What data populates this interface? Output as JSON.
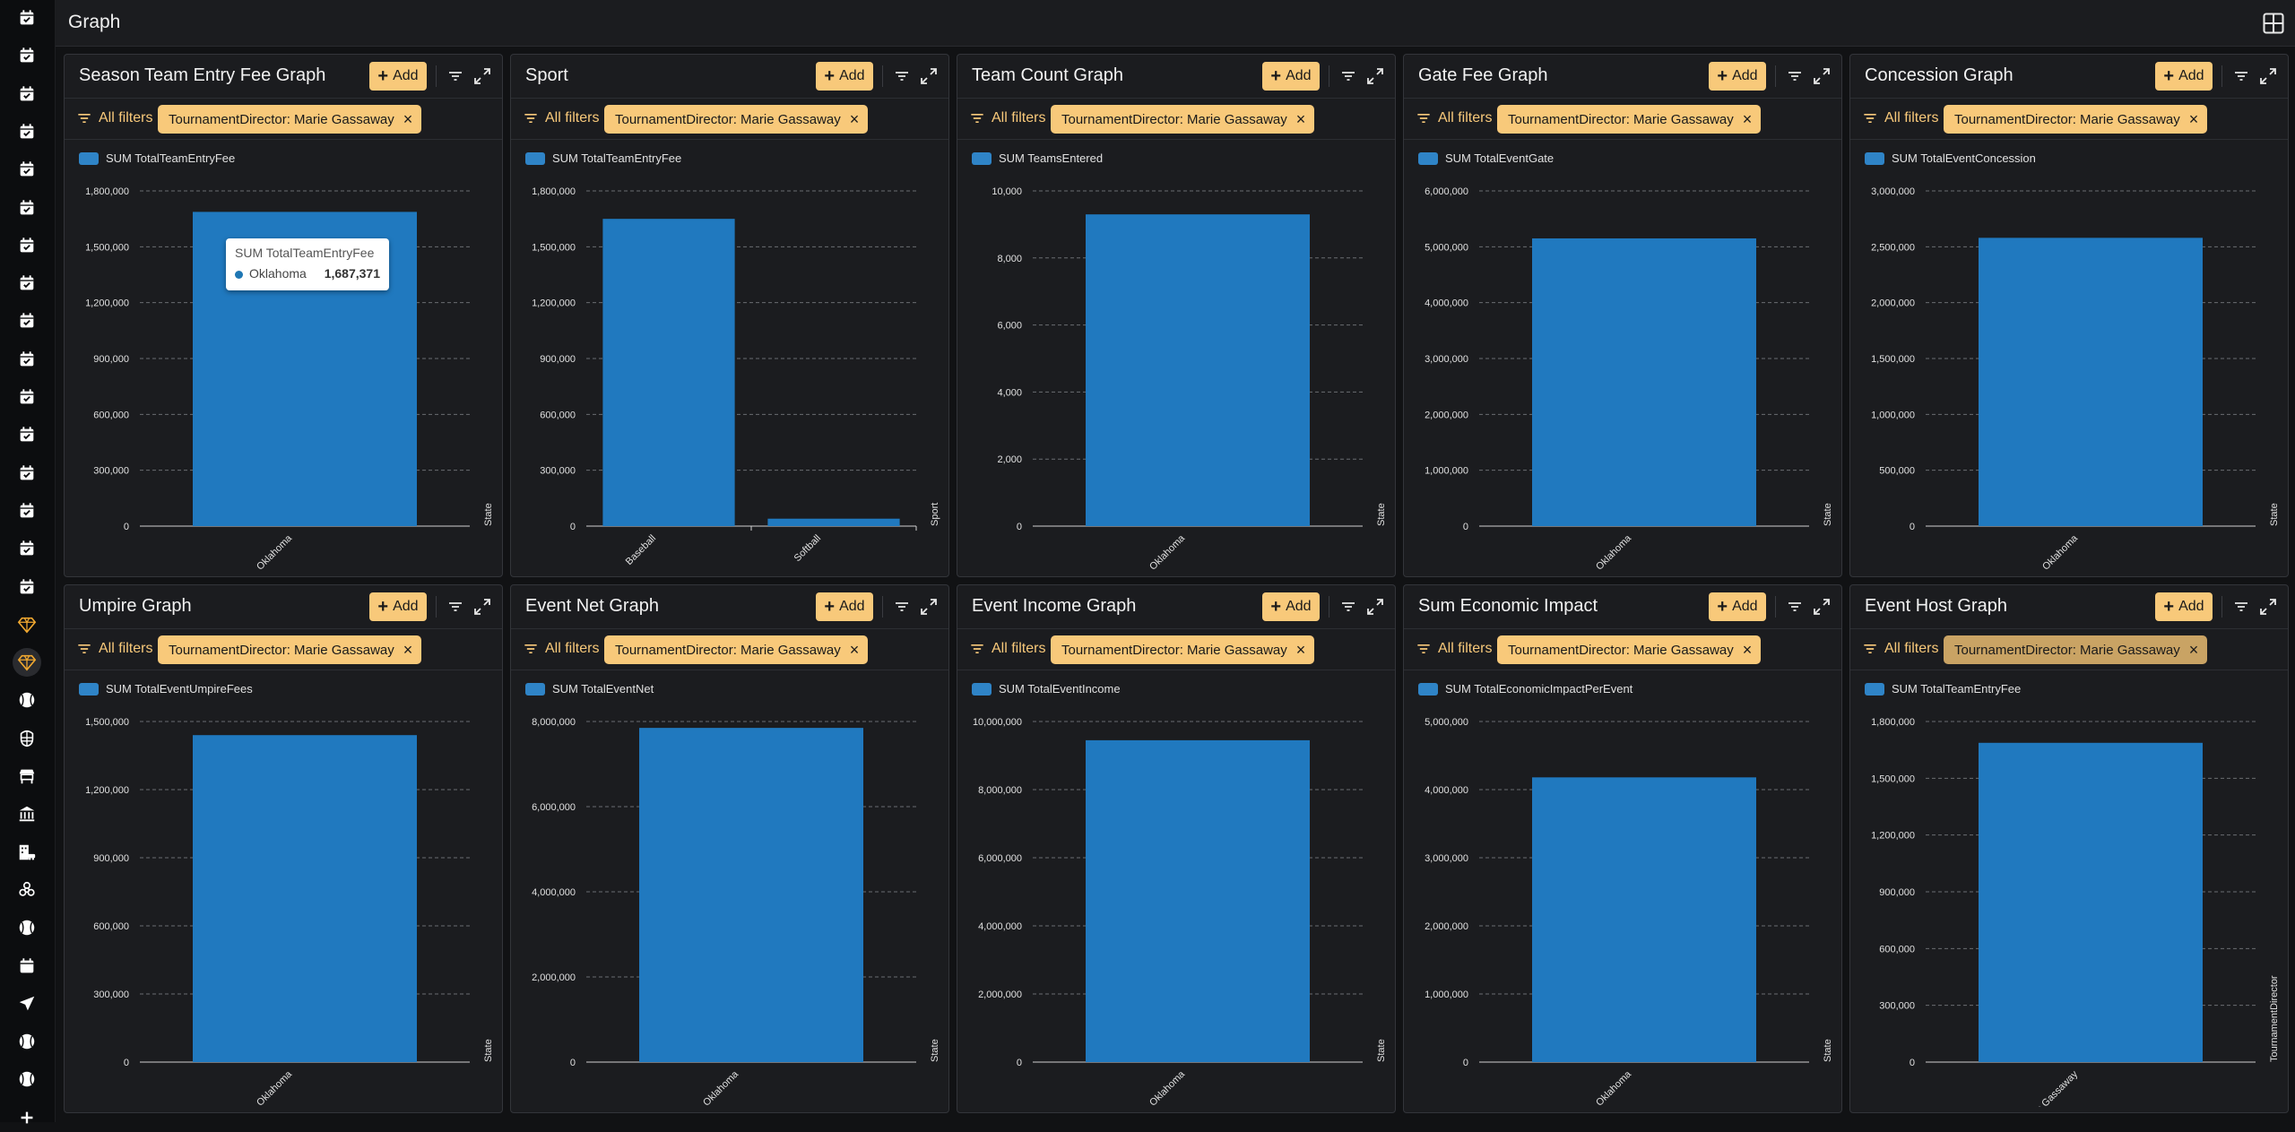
{
  "page": {
    "title": "Graph"
  },
  "colors": {
    "accent": "#f8c97a",
    "bar": "#2079bf",
    "legend_swatch": "#2f84c7",
    "panel_bg": "#1b1c1f"
  },
  "sidebar": {
    "items": [
      {
        "icon": "calendar-check-icon"
      },
      {
        "icon": "calendar-check-icon"
      },
      {
        "icon": "calendar-check-icon"
      },
      {
        "icon": "calendar-check-icon"
      },
      {
        "icon": "calendar-check-icon"
      },
      {
        "icon": "calendar-check-icon"
      },
      {
        "icon": "calendar-check-icon"
      },
      {
        "icon": "calendar-check-icon"
      },
      {
        "icon": "calendar-check-icon"
      },
      {
        "icon": "calendar-check-icon"
      },
      {
        "icon": "calendar-check-icon"
      },
      {
        "icon": "calendar-check-icon"
      },
      {
        "icon": "calendar-check-icon"
      },
      {
        "icon": "calendar-check-icon"
      },
      {
        "icon": "calendar-check-icon"
      },
      {
        "icon": "calendar-check-icon"
      },
      {
        "icon": "gem-icon"
      },
      {
        "icon": "gem-icon",
        "active": true
      },
      {
        "icon": "baseball-icon"
      },
      {
        "icon": "umpire-mask-icon"
      },
      {
        "icon": "concession-stand-icon"
      },
      {
        "icon": "bank-icon"
      },
      {
        "icon": "building-car-icon"
      },
      {
        "icon": "biohazard-icon"
      },
      {
        "icon": "baseball-icon"
      },
      {
        "icon": "calendar-icon"
      },
      {
        "icon": "send-icon"
      },
      {
        "icon": "baseball-icon"
      },
      {
        "icon": "baseball-icon"
      },
      {
        "icon": "plus-icon"
      }
    ]
  },
  "panel_common": {
    "add_label": "Add",
    "all_filters_label": "All filters"
  },
  "panels": [
    {
      "title": "Season Team Entry Fee Graph",
      "filter": "TournamentDirector: Marie Gassaway",
      "tooltip": {
        "title": "SUM TotalTeamEntryFee",
        "label": "Oklahoma",
        "value": "1,687,371"
      },
      "chart_data": {
        "type": "bar",
        "legend": "SUM TotalTeamEntryFee",
        "xlabel": "State",
        "categories": [
          "Oklahoma"
        ],
        "values": [
          1687371
        ],
        "ylim": [
          0,
          1800000
        ],
        "yticks": [
          0,
          300000,
          600000,
          900000,
          1200000,
          1500000,
          1800000
        ]
      }
    },
    {
      "title": "Sport",
      "filter": "TournamentDirector: Marie Gassaway",
      "chart_data": {
        "type": "bar",
        "legend": "SUM TotalTeamEntryFee",
        "xlabel": "Sport",
        "categories": [
          "Baseball",
          "Softball"
        ],
        "values": [
          1650000,
          40000
        ],
        "ylim": [
          0,
          1800000
        ],
        "yticks": [
          0,
          300000,
          600000,
          900000,
          1200000,
          1500000,
          1800000
        ]
      }
    },
    {
      "title": "Team Count Graph",
      "filter": "TournamentDirector: Marie Gassaway",
      "chart_data": {
        "type": "bar",
        "legend": "SUM TeamsEntered",
        "xlabel": "State",
        "categories": [
          "Oklahoma"
        ],
        "values": [
          9300
        ],
        "ylim": [
          0,
          10000
        ],
        "yticks": [
          0,
          2000,
          4000,
          6000,
          8000,
          10000
        ]
      }
    },
    {
      "title": "Gate Fee Graph",
      "filter": "TournamentDirector: Marie Gassaway",
      "chart_data": {
        "type": "bar",
        "legend": "SUM TotalEventGate",
        "xlabel": "State",
        "categories": [
          "Oklahoma"
        ],
        "values": [
          5150000
        ],
        "ylim": [
          0,
          6000000
        ],
        "yticks": [
          0,
          1000000,
          2000000,
          3000000,
          4000000,
          5000000,
          6000000
        ]
      }
    },
    {
      "title": "Concession Graph",
      "filter": "TournamentDirector: Marie Gassaway",
      "chart_data": {
        "type": "bar",
        "legend": "SUM TotalEventConcession",
        "xlabel": "State",
        "categories": [
          "Oklahoma"
        ],
        "values": [
          2580000
        ],
        "ylim": [
          0,
          3000000
        ],
        "yticks": [
          0,
          500000,
          1000000,
          1500000,
          2000000,
          2500000,
          3000000
        ]
      }
    },
    {
      "title": "Umpire Graph",
      "filter": "TournamentDirector: Marie Gassaway",
      "chart_data": {
        "type": "bar",
        "legend": "SUM TotalEventUmpireFees",
        "xlabel": "State",
        "categories": [
          "Oklahoma"
        ],
        "values": [
          1440000
        ],
        "ylim": [
          0,
          1500000
        ],
        "yticks": [
          0,
          300000,
          600000,
          900000,
          1200000,
          1500000
        ]
      }
    },
    {
      "title": "Event Net Graph",
      "filter": "TournamentDirector: Marie Gassaway",
      "chart_data": {
        "type": "bar",
        "legend": "SUM TotalEventNet",
        "xlabel": "State",
        "categories": [
          "Oklahoma"
        ],
        "values": [
          7850000
        ],
        "ylim": [
          0,
          8000000
        ],
        "yticks": [
          0,
          2000000,
          4000000,
          6000000,
          8000000
        ]
      }
    },
    {
      "title": "Event Income Graph",
      "filter": "TournamentDirector: Marie Gassaway",
      "chart_data": {
        "type": "bar",
        "legend": "SUM TotalEventIncome",
        "xlabel": "State",
        "categories": [
          "Oklahoma"
        ],
        "values": [
          9450000
        ],
        "ylim": [
          0,
          10000000
        ],
        "yticks": [
          0,
          2000000,
          4000000,
          6000000,
          8000000,
          10000000
        ]
      }
    },
    {
      "title": "Sum Economic Impact",
      "filter": "TournamentDirector: Marie Gassaway",
      "chart_data": {
        "type": "bar",
        "legend": "SUM TotalEconomicImpactPerEvent",
        "xlabel": "State",
        "categories": [
          "Oklahoma"
        ],
        "values": [
          4180000
        ],
        "ylim": [
          0,
          5000000
        ],
        "yticks": [
          0,
          1000000,
          2000000,
          3000000,
          4000000,
          5000000
        ]
      }
    },
    {
      "title": "Event Host Graph",
      "filter": "TournamentDirector: Marie Gassaway",
      "filter_muted": true,
      "chart_data": {
        "type": "bar",
        "legend": "SUM TotalTeamEntryFee",
        "xlabel": "TournamentDirector",
        "categories": [
          "Marie Gassaway"
        ],
        "values": [
          1687371
        ],
        "ylim": [
          0,
          1800000
        ],
        "yticks": [
          0,
          300000,
          600000,
          900000,
          1200000,
          1500000,
          1800000
        ]
      }
    }
  ]
}
